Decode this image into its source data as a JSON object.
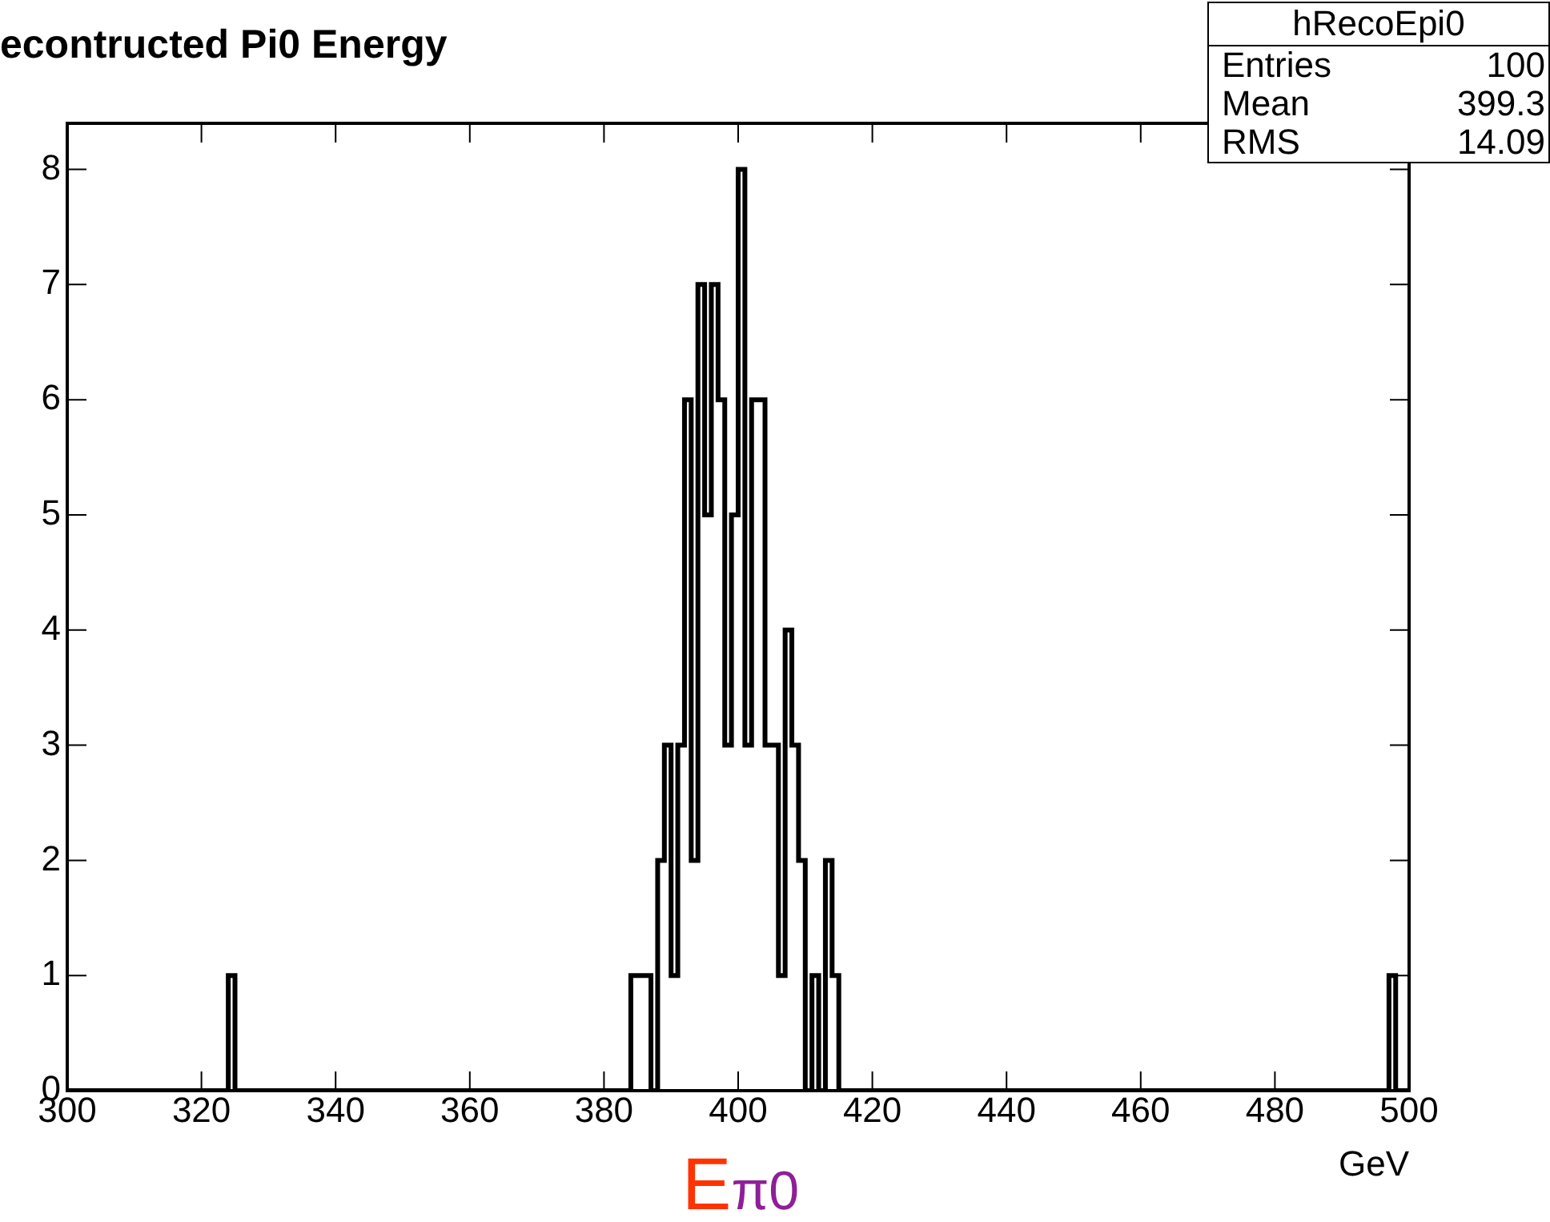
{
  "chart_data": {
    "type": "histogram",
    "title": "econtructed Pi0 Energy",
    "xlabel": "GeV",
    "bins": [
      300,
      301,
      302,
      303,
      304,
      305,
      306,
      307,
      308,
      309,
      310,
      311,
      312,
      313,
      314,
      315,
      316,
      317,
      318,
      319,
      320,
      321,
      322,
      323,
      324,
      325,
      326,
      327,
      328,
      329,
      330,
      331,
      332,
      333,
      334,
      335,
      336,
      337,
      338,
      339,
      340,
      341,
      342,
      343,
      344,
      345,
      346,
      347,
      348,
      349,
      350,
      351,
      352,
      353,
      354,
      355,
      356,
      357,
      358,
      359,
      360,
      361,
      362,
      363,
      364,
      365,
      366,
      367,
      368,
      369,
      370,
      371,
      372,
      373,
      374,
      375,
      376,
      377,
      378,
      379,
      380,
      381,
      382,
      383,
      384,
      385,
      386,
      387,
      388,
      389,
      390,
      391,
      392,
      393,
      394,
      395,
      396,
      397,
      398,
      399,
      400,
      401,
      402,
      403,
      404,
      405,
      406,
      407,
      408,
      409,
      410,
      411,
      412,
      413,
      414,
      415,
      416,
      417,
      418,
      419,
      420,
      421,
      422,
      423,
      424,
      425,
      426,
      427,
      428,
      429,
      430,
      431,
      432,
      433,
      434,
      435,
      436,
      437,
      438,
      439,
      440,
      441,
      442,
      443,
      444,
      445,
      446,
      447,
      448,
      449,
      450,
      451,
      452,
      453,
      454,
      455,
      456,
      457,
      458,
      459,
      460,
      461,
      462,
      463,
      464,
      465,
      466,
      467,
      468,
      469,
      470,
      471,
      472,
      473,
      474,
      475,
      476,
      477,
      478,
      479,
      480,
      481,
      482,
      483,
      484,
      485,
      486,
      487,
      488,
      489,
      490,
      491,
      492,
      493,
      494,
      495,
      496,
      497,
      498,
      499,
      500
    ],
    "values": [
      0,
      0,
      0,
      0,
      0,
      0,
      0,
      0,
      0,
      0,
      0,
      0,
      0,
      0,
      0,
      0,
      0,
      0,
      0,
      0,
      0,
      0,
      0,
      0,
      1,
      0,
      0,
      0,
      0,
      0,
      0,
      0,
      0,
      0,
      0,
      0,
      0,
      0,
      0,
      0,
      0,
      0,
      0,
      0,
      0,
      0,
      0,
      0,
      0,
      0,
      0,
      0,
      0,
      0,
      0,
      0,
      0,
      0,
      0,
      0,
      0,
      0,
      0,
      0,
      0,
      0,
      0,
      0,
      0,
      0,
      0,
      0,
      0,
      0,
      0,
      0,
      0,
      0,
      0,
      0,
      0,
      0,
      0,
      0,
      1,
      1,
      1,
      0,
      2,
      3,
      1,
      3,
      6,
      2,
      7,
      5,
      7,
      6,
      3,
      5,
      8,
      3,
      6,
      6,
      3,
      3,
      1,
      4,
      3,
      2,
      0,
      1,
      0,
      2,
      1,
      0,
      0,
      0,
      0,
      0,
      0,
      0,
      0,
      0,
      0,
      0,
      0,
      0,
      0,
      0,
      0,
      0,
      0,
      0,
      0,
      0,
      0,
      0,
      0,
      0,
      0,
      0,
      0,
      0,
      0,
      0,
      0,
      0,
      0,
      0,
      0,
      0,
      0,
      0,
      0,
      0,
      0,
      0,
      0,
      0,
      0,
      0,
      0,
      0,
      0,
      0,
      0,
      0,
      0,
      0,
      0,
      0,
      0,
      0,
      0,
      0,
      0,
      0,
      0,
      0,
      0,
      0,
      0,
      0,
      0,
      0,
      0,
      0,
      0,
      0,
      0,
      0,
      0,
      0,
      0,
      0,
      0,
      1,
      0,
      0
    ],
    "color": "#000000",
    "xlim": [
      300,
      500
    ],
    "xticks": [
      300,
      320,
      340,
      360,
      380,
      400,
      420,
      440,
      460,
      480,
      500
    ],
    "ylim": [
      0,
      8.4
    ],
    "yticks": [
      0,
      1,
      2,
      3,
      4,
      5,
      6,
      7,
      8
    ],
    "grid": false,
    "legend": false,
    "annotations": [
      "Eπ0",
      "hRecoEpi0",
      "Entries",
      "100",
      "Mean",
      "399.3",
      "RMS",
      "14.09"
    ]
  }
}
